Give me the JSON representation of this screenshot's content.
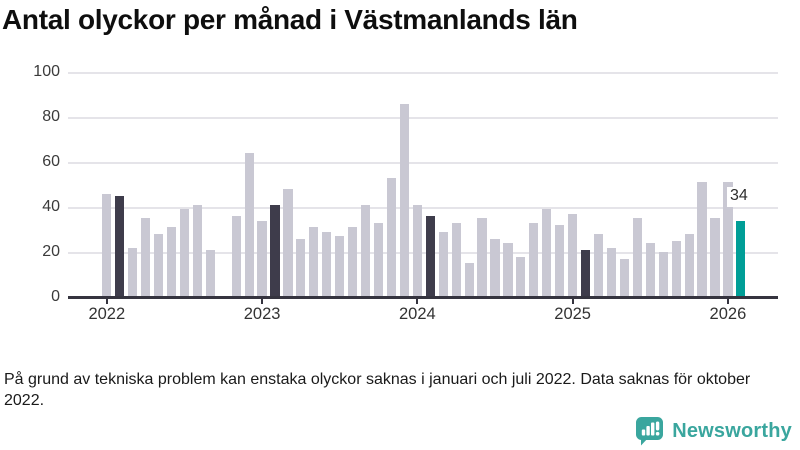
{
  "chart_data": {
    "type": "bar",
    "title": "Antal olyckor per månad i Västmanlands län",
    "xlabel": "",
    "ylabel": "",
    "ylim": [
      0,
      100
    ],
    "yticks": [
      0,
      20,
      40,
      60,
      80,
      100
    ],
    "year_ticks": [
      "2022",
      "2023",
      "2024",
      "2025",
      "2026"
    ],
    "grid": true,
    "legend_position": "none",
    "months": [
      "2022-01",
      "2022-02",
      "2022-03",
      "2022-04",
      "2022-05",
      "2022-06",
      "2022-07",
      "2022-08",
      "2022-09",
      "2022-10",
      "2022-11",
      "2022-12",
      "2023-01",
      "2023-02",
      "2023-03",
      "2023-04",
      "2023-05",
      "2023-06",
      "2023-07",
      "2023-08",
      "2023-09",
      "2023-10",
      "2023-11",
      "2023-12",
      "2024-01",
      "2024-02",
      "2024-03",
      "2024-04",
      "2024-05",
      "2024-06",
      "2024-07",
      "2024-08",
      "2024-09",
      "2024-10",
      "2024-11",
      "2024-12",
      "2025-01",
      "2025-02",
      "2025-03",
      "2025-04",
      "2025-05",
      "2025-06",
      "2025-07",
      "2025-08",
      "2025-09",
      "2025-10",
      "2025-11",
      "2025-12",
      "2026-01",
      "2026-02"
    ],
    "values": [
      46,
      45,
      22,
      35,
      28,
      31,
      39,
      41,
      21,
      null,
      36,
      64,
      34,
      41,
      48,
      26,
      31,
      29,
      27,
      31,
      41,
      33,
      53,
      86,
      41,
      36,
      29,
      33,
      15,
      35,
      26,
      24,
      18,
      33,
      39,
      32,
      37,
      21,
      28,
      22,
      17,
      35,
      24,
      20,
      25,
      28,
      51,
      35,
      51,
      34
    ],
    "highlighted_months": [
      "2022-02",
      "2023-02",
      "2024-02",
      "2025-02"
    ],
    "current_month": "2026-02",
    "annotation": {
      "month": "2026-02",
      "label": "34"
    },
    "colors": {
      "bar_default": "#c9c8d3",
      "bar_highlight": "#3e3c4b",
      "bar_current": "#009e97",
      "grid": "#e5e4e9",
      "axis": "#35343f",
      "tick_label": "#3b3b3b"
    }
  },
  "footnote": {
    "text": "På grund av tekniska problem kan enstaka olyckor saknas i januari och juli 2022. Data saknas för oktober 2022."
  },
  "logo": {
    "text": "Newsworthy",
    "color": "#3aa69e"
  }
}
